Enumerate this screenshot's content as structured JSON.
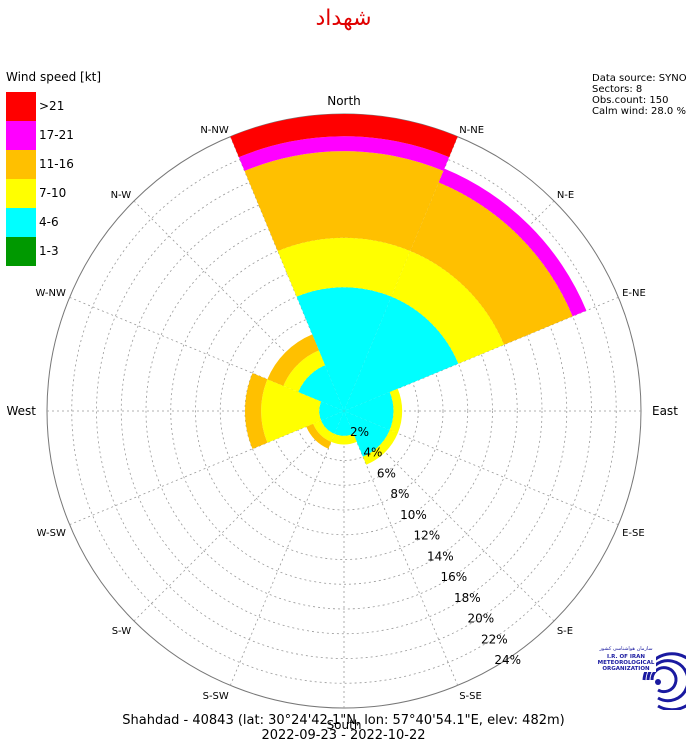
{
  "title": "شهداد",
  "legend": {
    "title": "Wind speed [kt]",
    "items": [
      {
        "label": ">21",
        "color": "#ff0000"
      },
      {
        "label": "17-21",
        "color": "#ff00ff"
      },
      {
        "label": "11-16",
        "color": "#ffc000"
      },
      {
        "label": "7-10",
        "color": "#ffff00"
      },
      {
        "label": "4-6",
        "color": "#00ffff"
      },
      {
        "label": "1-3",
        "color": "#009900"
      }
    ]
  },
  "info": {
    "source": "Data source: SYNOP",
    "sectors": "Sectors: 8",
    "count": "Obs.count: 150",
    "calm": "Calm wind: 28.0 %"
  },
  "footer": {
    "line1": "Shahdad - 40843 (lat: 30°24'42.1\"N, lon: 57°40'54.1\"E, elev: 482m)",
    "line2": "2022-09-23 - 2022-10-22"
  },
  "chart_data": {
    "type": "windrose",
    "title": "شهداد",
    "sectors": [
      "North",
      "N-NE",
      "N-E",
      "E-NE",
      "East",
      "E-SE",
      "S-E",
      "S-SE",
      "South",
      "S-SW",
      "S-W",
      "W-SW",
      "West",
      "W-NW",
      "N-W",
      "N-NW"
    ],
    "radial_ticks": [
      "2%",
      "4%",
      "6%",
      "8%",
      "10%",
      "12%",
      "14%",
      "16%",
      "18%",
      "20%",
      "22%",
      "24%"
    ],
    "radial_max": 24,
    "speed_bins": [
      "1-3",
      "4-6",
      "7-10",
      "11-16",
      "17-21",
      ">21"
    ],
    "series": [
      {
        "direction": "North",
        "cumulative": [
          0,
          10,
          14,
          21,
          22.2,
          24
        ]
      },
      {
        "direction": "N-E",
        "cumulative": [
          0,
          10,
          14,
          20,
          21.2,
          21.2
        ]
      },
      {
        "direction": "East",
        "cumulative": [
          0,
          4,
          4.7,
          4.7,
          4.7,
          4.7
        ]
      },
      {
        "direction": "S-E",
        "cumulative": [
          0,
          4,
          4.7,
          4.7,
          4.7,
          4.7
        ]
      },
      {
        "direction": "South",
        "cumulative": [
          0,
          2,
          2.7,
          2.7,
          2.7,
          2.7
        ]
      },
      {
        "direction": "S-W",
        "cumulative": [
          0,
          2,
          2.7,
          3.3,
          3.3,
          3.3
        ]
      },
      {
        "direction": "West",
        "cumulative": [
          0,
          2,
          6.7,
          8,
          8,
          8
        ]
      },
      {
        "direction": "N-W",
        "cumulative": [
          0,
          4,
          5.3,
          6.7,
          6.7,
          6.7
        ]
      }
    ]
  }
}
